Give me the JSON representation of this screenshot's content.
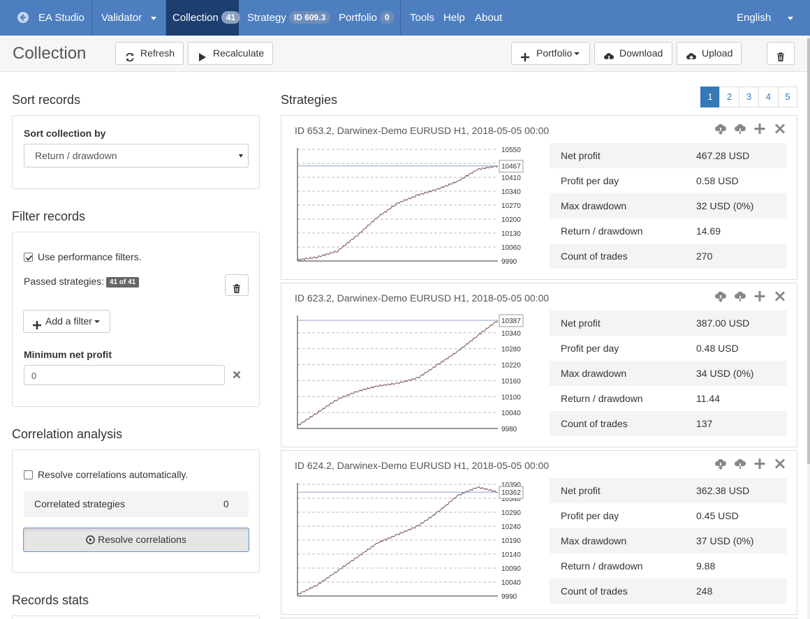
{
  "nav": {
    "ea_studio": "EA Studio",
    "validator": "Validator",
    "collection": "Collection",
    "collection_count": "41",
    "strategy": "Strategy",
    "strategy_badge": "ID 609.3",
    "portfolio": "Portfolio",
    "portfolio_count": "0",
    "tools": "Tools",
    "help": "Help",
    "about": "About",
    "language": "English"
  },
  "toolbar": {
    "title": "Collection",
    "refresh": "Refresh",
    "recalculate": "Recalculate",
    "portfolio": "Portfolio",
    "download": "Download",
    "upload": "Upload"
  },
  "sort": {
    "title": "Sort records",
    "label": "Sort collection by",
    "selected": "Return / drawdown"
  },
  "filter": {
    "title": "Filter records",
    "use_filters_label": "Use performance filters.",
    "use_filters_checked": true,
    "passed_label": "Passed strategies:",
    "passed_count": "41 of 41",
    "add_filter": "Add a filter",
    "min_net_profit_label": "Minimum net profit",
    "min_net_profit_value": "0"
  },
  "correlation": {
    "title": "Correlation analysis",
    "auto_label": "Resolve correlations automatically.",
    "auto_checked": false,
    "correlated_label": "Correlated strategies",
    "correlated_count": "0",
    "resolve_button": "Resolve correlations"
  },
  "records_stats": {
    "title": "Records stats"
  },
  "strategies": {
    "title": "Strategies",
    "pages": [
      "1",
      "2",
      "3",
      "4",
      "5"
    ],
    "active_page": "1",
    "stat_labels": [
      "Net profit",
      "Profit per day",
      "Max drawdown",
      "Return / drawdown",
      "Count of trades"
    ],
    "cards": [
      {
        "title": "ID 653.2, Darwinex-Demo EURUSD H1, 2018-05-05 00:00",
        "stats": [
          "467.28 USD",
          "0.58 USD",
          "32 USD (0%)",
          "14.69",
          "270"
        ]
      },
      {
        "title": "ID 623.2, Darwinex-Demo EURUSD H1, 2018-05-05 00:00",
        "stats": [
          "387.00 USD",
          "0.48 USD",
          "34 USD (0%)",
          "11.44",
          "137"
        ]
      },
      {
        "title": "ID 624.2, Darwinex-Demo EURUSD H1, 2018-05-05 00:00",
        "stats": [
          "362.38 USD",
          "0.45 USD",
          "37 USD (0%)",
          "9.88",
          "248"
        ]
      }
    ]
  },
  "chart_data": [
    {
      "type": "line",
      "y_ticks": [
        10550,
        10480,
        10410,
        10340,
        10270,
        10200,
        10130,
        10060,
        9990
      ],
      "ylim": [
        9990,
        10550
      ],
      "final_label": "10467",
      "x": [
        0,
        10,
        20,
        30,
        40,
        50,
        60,
        70,
        80,
        90,
        100
      ],
      "y": [
        9995,
        10010,
        10040,
        10120,
        10210,
        10280,
        10320,
        10350,
        10390,
        10450,
        10467
      ],
      "grid": true
    },
    {
      "type": "line",
      "y_ticks": [
        10340,
        10280,
        10220,
        10160,
        10100,
        10040,
        9980
      ],
      "ylim": [
        9980,
        10400
      ],
      "final_label": "10387",
      "x": [
        0,
        10,
        20,
        30,
        40,
        50,
        60,
        70,
        80,
        90,
        100
      ],
      "y": [
        9990,
        10040,
        10090,
        10120,
        10140,
        10150,
        10170,
        10220,
        10270,
        10330,
        10387
      ],
      "grid": true
    },
    {
      "type": "line",
      "y_ticks": [
        10390,
        10340,
        10290,
        10240,
        10190,
        10140,
        10090,
        10040,
        9990
      ],
      "ylim": [
        9990,
        10390
      ],
      "final_label": "10362",
      "x": [
        0,
        10,
        20,
        30,
        40,
        50,
        60,
        70,
        80,
        90,
        100
      ],
      "y": [
        9995,
        10030,
        10080,
        10130,
        10180,
        10210,
        10240,
        10290,
        10350,
        10380,
        10362
      ],
      "grid": true
    }
  ]
}
